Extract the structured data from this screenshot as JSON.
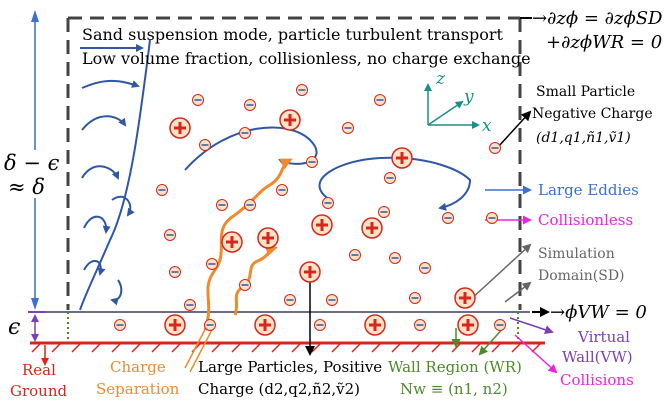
{
  "header": {
    "line1": "Sand suspension mode, particle turbulent transport",
    "line2": "Low volume fraction, collisionless, no charge exchange"
  },
  "top_right_equation": {
    "line1": "→∂zϕ = ∂zϕSD",
    "line2": "+∂zϕWR = 0"
  },
  "left_scale": {
    "delta_line1": "δ − ϵ",
    "delta_line2": "≈ δ",
    "epsilon": "ϵ"
  },
  "axes": {
    "z": "z",
    "y": "y",
    "x": "x"
  },
  "labels": {
    "small_particle": [
      "Small Particle",
      "Negative Charge",
      "(d1,q1,ñ1,ṽ1)"
    ],
    "large_eddies": "Large Eddies",
    "collisionless": "Collisionless",
    "simulation_domain": [
      "Simulation",
      "Domain(SD)"
    ],
    "phi_vw": "→ϕVW = 0",
    "virtual_wall": [
      "Virtual",
      "Wall(VW)"
    ],
    "collisions": "Collisions",
    "real_ground": [
      "Real",
      "Ground"
    ],
    "charge_separation": [
      "Charge",
      "Separation"
    ],
    "large_particles": [
      "Large Particles, Positive",
      "Charge (d2,q2,ñ2,ṽ2)"
    ],
    "wall_region": [
      "Wall Region (WR)",
      "Nw ≡ (n1, n2)"
    ]
  },
  "colors": {
    "eddy_blue": "#2f57a5",
    "label_blue": "#3b6fd0",
    "magenta": "#e825e0",
    "gray": "#666666",
    "orange": "#f08a2c",
    "red": "#d9261c",
    "green": "#4e8a2a",
    "purple": "#7b3fb8",
    "teal": "#1b8f86",
    "particle_fill": "#fbe3c8"
  },
  "particles": {
    "positive_symbol": "+",
    "negative_symbol": "−"
  }
}
